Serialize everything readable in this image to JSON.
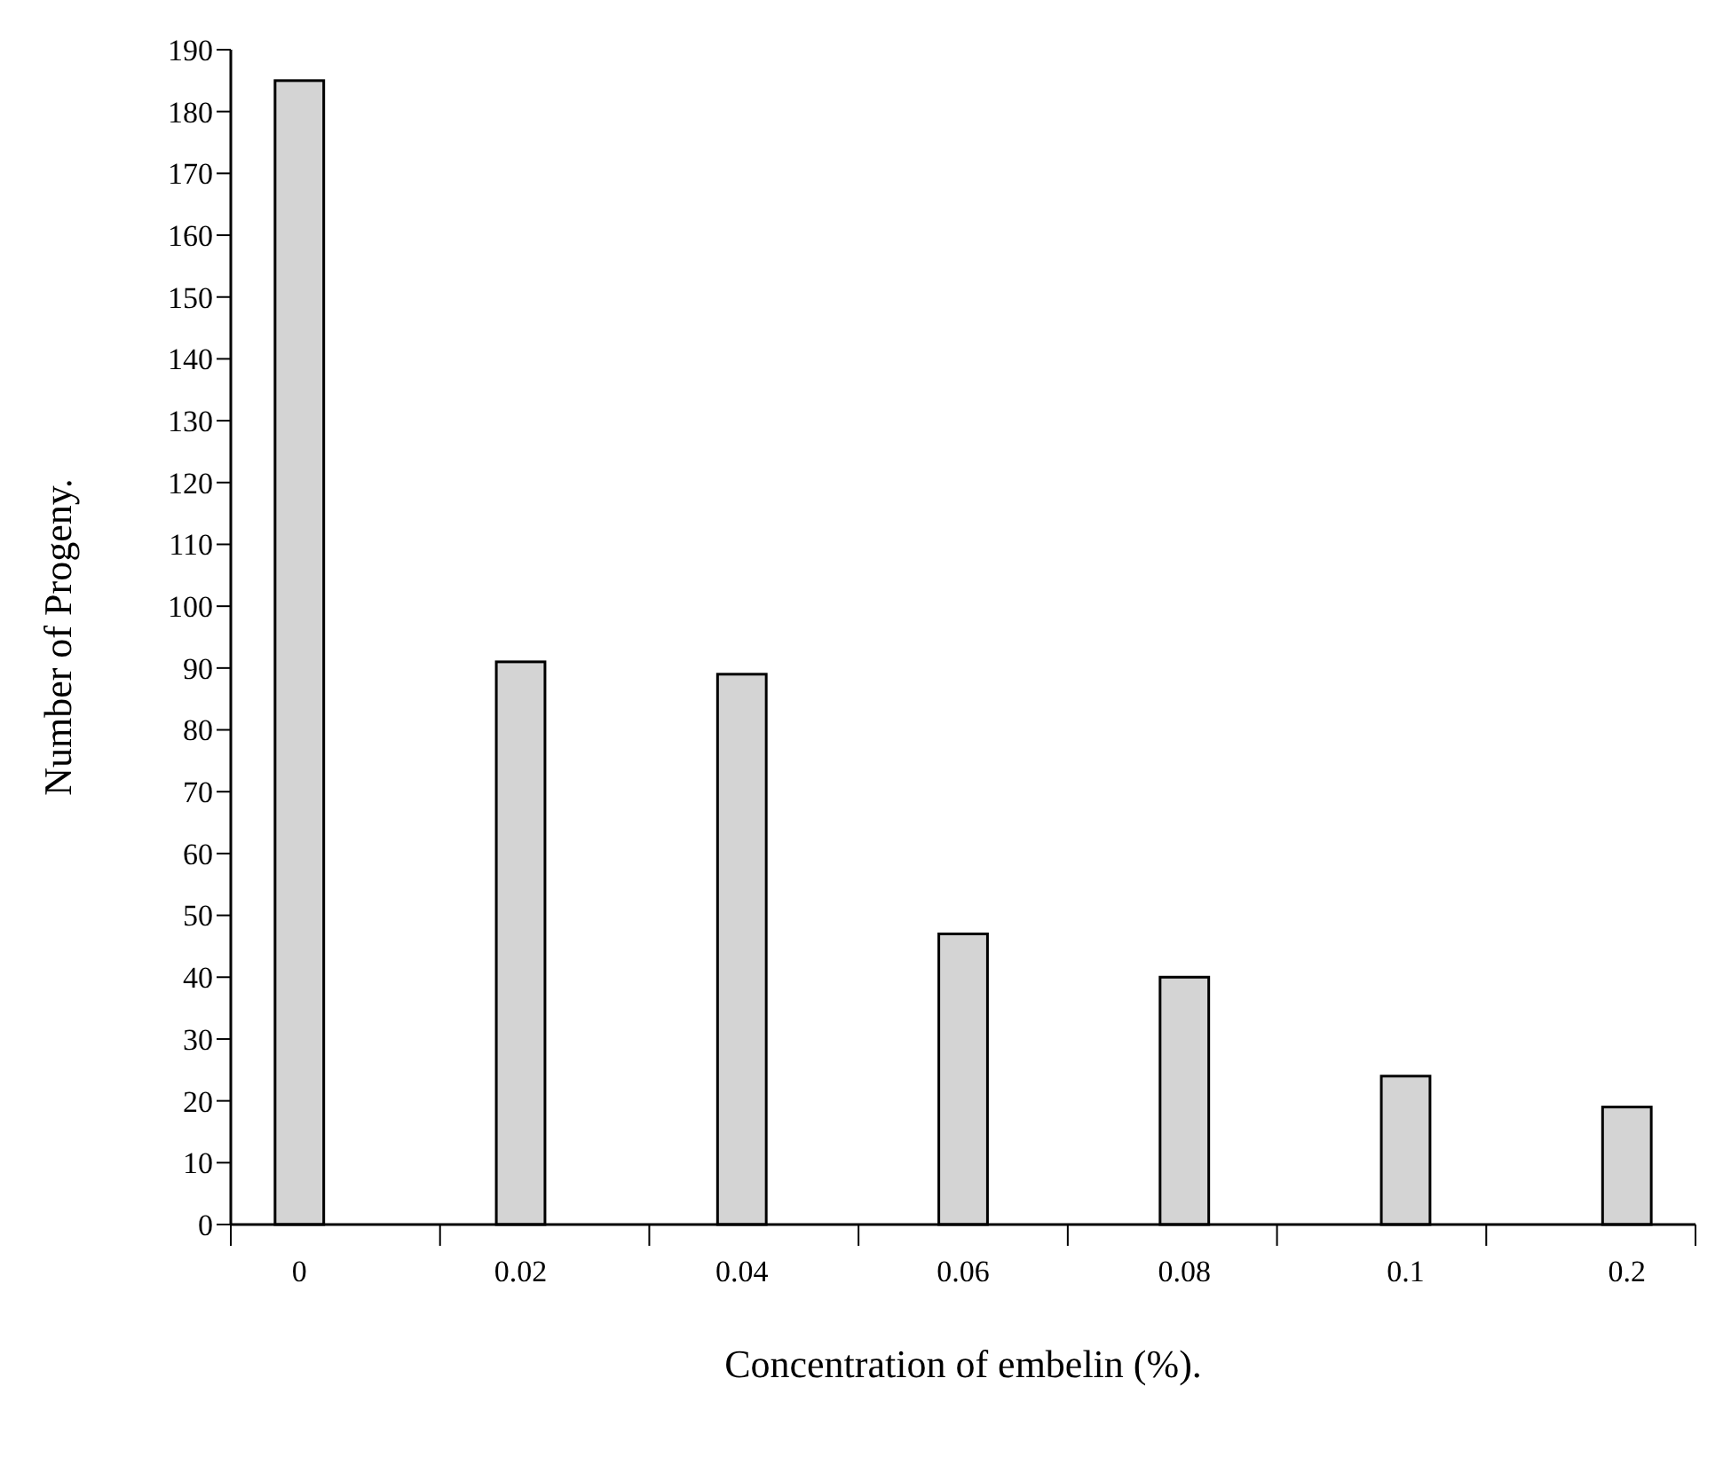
{
  "chart_data": {
    "type": "bar",
    "xlabel": "Concentration of embelin (%).",
    "ylabel": "Number of Progeny.",
    "categories": [
      "0",
      "0.02",
      "0.04",
      "0.06",
      "0.08",
      "0.1",
      "0.2"
    ],
    "values": [
      185,
      91,
      89,
      47,
      40,
      24,
      19
    ],
    "color": "#d4d4d4",
    "ylim": [
      0,
      190
    ],
    "yticks": [
      0,
      10,
      20,
      30,
      40,
      50,
      60,
      70,
      80,
      90,
      100,
      110,
      120,
      130,
      140,
      150,
      160,
      170,
      180,
      190
    ]
  }
}
